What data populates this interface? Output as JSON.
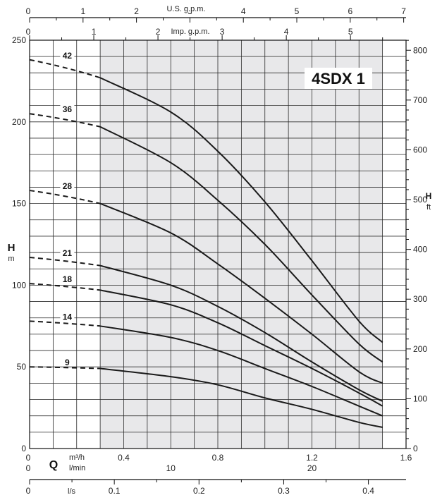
{
  "chart_data": {
    "type": "line",
    "title": "4SDX 1",
    "x_primary": {
      "label": "m³/h",
      "range": [
        0,
        1.6
      ],
      "ticks": [
        "0",
        "0.4",
        "0.8",
        "1.2",
        "1.6"
      ]
    },
    "x_lmin": {
      "label": "l/min",
      "ticks": [
        "0",
        "10",
        "20"
      ]
    },
    "x_ls": {
      "label": "l/s",
      "ticks": [
        "0",
        "0.1",
        "0.2",
        "0.3",
        "0.4"
      ]
    },
    "x_usgpm": {
      "label": "U.S. g.p.m.",
      "ticks": [
        "0",
        "1",
        "2",
        "3",
        "4",
        "5",
        "6",
        "7"
      ]
    },
    "x_impgpm": {
      "label": "Imp. g.p.m.",
      "ticks": [
        "0",
        "1",
        "2",
        "3",
        "4",
        "5"
      ]
    },
    "flow_letter": "Q",
    "y_left": {
      "letter": "H",
      "unit": "m",
      "range": [
        0,
        250
      ],
      "ticks": [
        "0",
        "50",
        "100",
        "150",
        "200",
        "250"
      ]
    },
    "y_right": {
      "letter": "H",
      "unit": "ft",
      "ticks": [
        "0",
        "100",
        "200",
        "300",
        "400",
        "500",
        "600",
        "700",
        "800"
      ]
    },
    "operating_range": [
      0.3,
      1.5
    ],
    "colors": {
      "curve": "#1a1a1a",
      "shade": "#e8e8ea",
      "grid": "#2b2b2b"
    },
    "series": [
      {
        "name": "42",
        "dashed_x": [
          0,
          0.3
        ],
        "solid": [
          [
            0.3,
            227
          ],
          [
            0.6,
            206
          ],
          [
            0.8,
            182
          ],
          [
            1.0,
            151
          ],
          [
            1.2,
            115
          ],
          [
            1.4,
            78
          ],
          [
            1.5,
            65
          ]
        ]
      },
      {
        "name": "36",
        "dashed_x": [
          0,
          0.3
        ],
        "solid": [
          [
            0.3,
            197
          ],
          [
            0.6,
            175
          ],
          [
            0.8,
            152
          ],
          [
            1.0,
            125
          ],
          [
            1.2,
            94
          ],
          [
            1.4,
            64
          ],
          [
            1.5,
            53
          ]
        ]
      },
      {
        "name": "28",
        "dashed_x": [
          0,
          0.3
        ],
        "solid": [
          [
            0.3,
            150
          ],
          [
            0.6,
            132
          ],
          [
            0.8,
            113
          ],
          [
            1.0,
            92
          ],
          [
            1.2,
            70
          ],
          [
            1.4,
            47
          ],
          [
            1.5,
            40
          ]
        ]
      },
      {
        "name": "21",
        "dashed_x": [
          0,
          0.3
        ],
        "solid": [
          [
            0.3,
            112
          ],
          [
            0.6,
            100
          ],
          [
            0.8,
            87
          ],
          [
            1.0,
            71
          ],
          [
            1.2,
            53
          ],
          [
            1.4,
            36
          ],
          [
            1.5,
            29
          ]
        ]
      },
      {
        "name": "18",
        "dashed_x": [
          0,
          0.3
        ],
        "solid": [
          [
            0.3,
            97
          ],
          [
            0.6,
            88
          ],
          [
            0.8,
            77
          ],
          [
            1.0,
            63
          ],
          [
            1.2,
            49
          ],
          [
            1.4,
            34
          ],
          [
            1.5,
            26
          ]
        ]
      },
      {
        "name": "14",
        "dashed_x": [
          0,
          0.3
        ],
        "solid": [
          [
            0.3,
            75
          ],
          [
            0.6,
            68
          ],
          [
            0.8,
            60
          ],
          [
            1.0,
            49
          ],
          [
            1.2,
            38
          ],
          [
            1.4,
            26
          ],
          [
            1.5,
            20
          ]
        ]
      },
      {
        "name": "9",
        "dashed_x": [
          0,
          0.3
        ],
        "solid": [
          [
            0.3,
            49
          ],
          [
            0.6,
            44
          ],
          [
            0.8,
            39
          ],
          [
            1.0,
            31
          ],
          [
            1.2,
            24
          ],
          [
            1.4,
            16
          ],
          [
            1.5,
            13
          ]
        ]
      }
    ],
    "shutoff_heads": {
      "42": 238,
      "36": 205,
      "28": 158,
      "21": 117,
      "18": 101,
      "14": 78,
      "9": 50
    }
  }
}
